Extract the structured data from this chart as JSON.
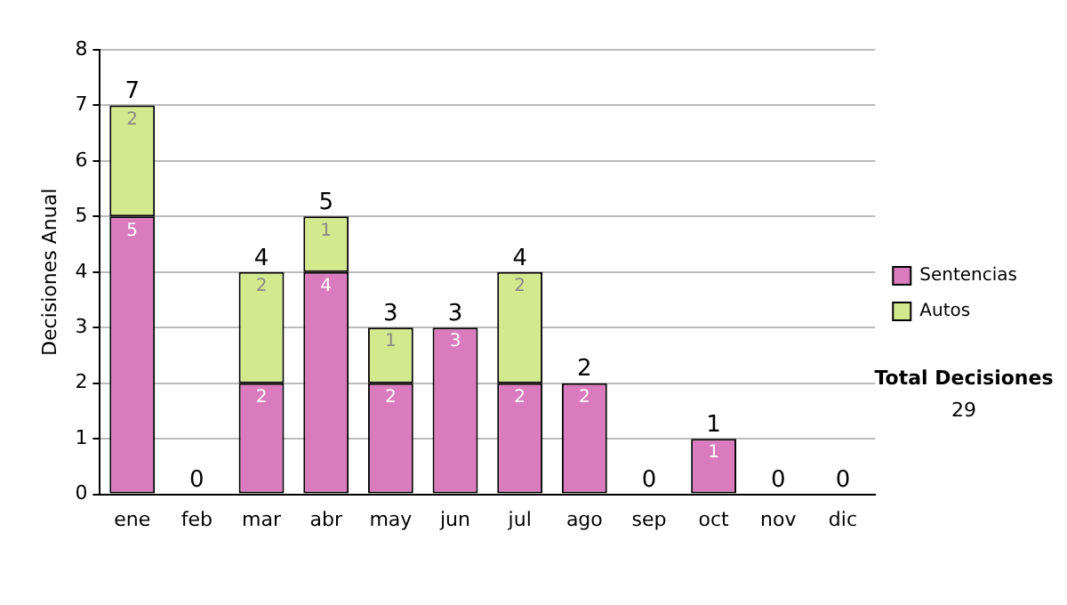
{
  "chart_data": {
    "type": "bar",
    "stacked": true,
    "ylabel": "Decisiones Anual",
    "categories": [
      "ene",
      "feb",
      "mar",
      "abr",
      "may",
      "jun",
      "jul",
      "ago",
      "sep",
      "oct",
      "nov",
      "dic"
    ],
    "series": [
      {
        "name": "Sentencias",
        "color": "#d97bbd",
        "values": [
          5,
          0,
          2,
          4,
          2,
          3,
          2,
          2,
          0,
          1,
          0,
          0
        ],
        "value_labels": [
          "5",
          null,
          "2",
          "4",
          "2",
          "3",
          "2",
          "2",
          null,
          "1",
          null,
          null
        ]
      },
      {
        "name": "Autos",
        "color": "#d4e98e",
        "values": [
          2,
          0,
          2,
          1,
          1,
          0,
          2,
          0,
          0,
          0,
          0,
          0
        ],
        "value_labels": [
          "2",
          null,
          "2",
          "1",
          "1",
          null,
          "2",
          null,
          null,
          null,
          null,
          null
        ]
      }
    ],
    "totals": [
      "7",
      "0",
      "4",
      "5",
      "3",
      "3",
      "4",
      "2",
      "0",
      "1",
      "0",
      "0"
    ],
    "ylim": [
      0,
      8
    ],
    "yticks": [
      0,
      1,
      2,
      3,
      4,
      5,
      6,
      7,
      8
    ],
    "grid": "y",
    "legend": "right",
    "annotations": [
      "Total Decisiones",
      "29"
    ]
  }
}
